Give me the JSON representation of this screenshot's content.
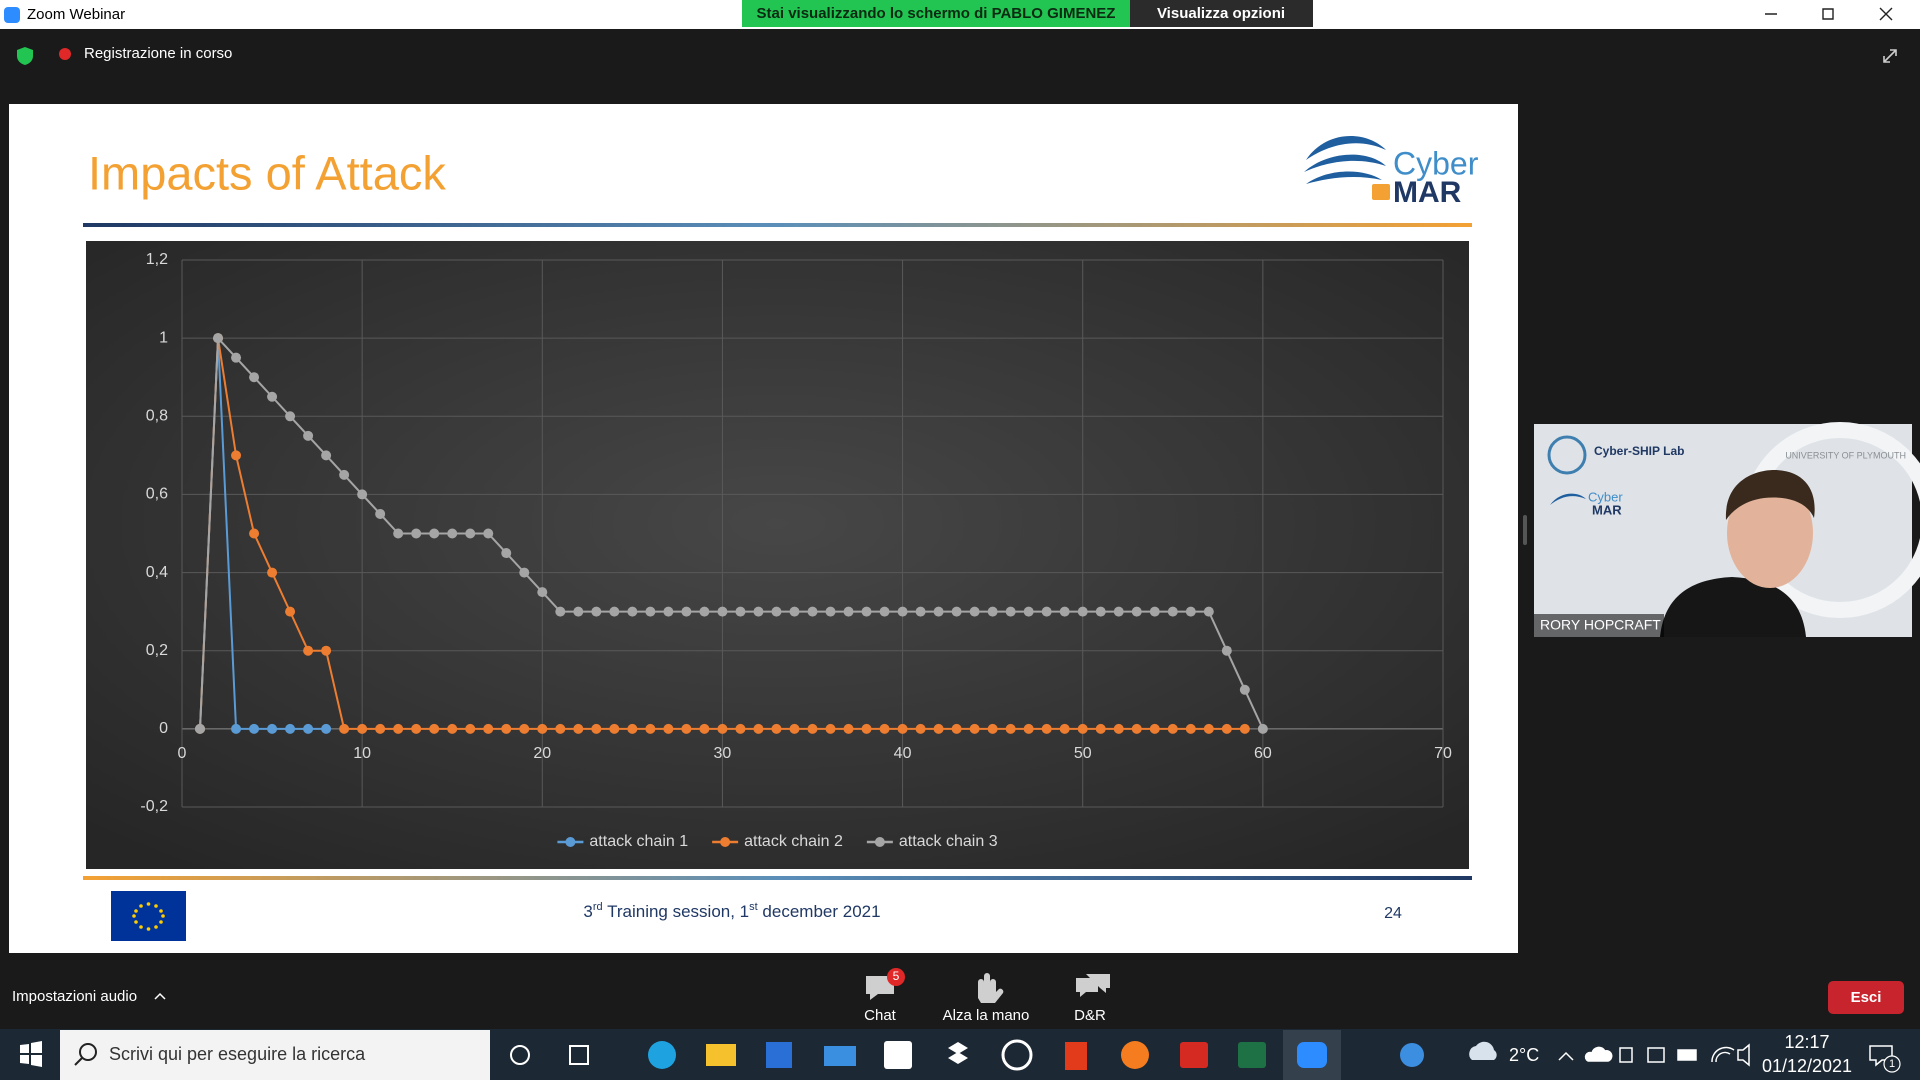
{
  "window": {
    "title": "Zoom Webinar"
  },
  "share_banner": {
    "text": "Stai visualizzando lo schermo di PABLO GIMENEZ",
    "options": "Visualizza opzioni"
  },
  "recording": "Registrazione in corso",
  "slide": {
    "title": "Impacts of Attack",
    "logo": [
      "Cyber",
      "MAR"
    ],
    "footer": [
      "3",
      "rd",
      " Training session, 1",
      "st",
      " december 2021"
    ],
    "page": 24
  },
  "chart_data": {
    "type": "line",
    "x": [
      1,
      2,
      3,
      4,
      5,
      6,
      7,
      8,
      9,
      10,
      11,
      12,
      13,
      14,
      15,
      16,
      17,
      18,
      19,
      20,
      21,
      22,
      23,
      24,
      25,
      26,
      27,
      28,
      29,
      30,
      31,
      32,
      33,
      34,
      35,
      36,
      37,
      38,
      39,
      40,
      41,
      42,
      43,
      44,
      45,
      46,
      47,
      48,
      49,
      50,
      51,
      52,
      53,
      54,
      55,
      56,
      57,
      58,
      59,
      60
    ],
    "series": [
      {
        "name": "attack chain 1",
        "color": "#5b9bd5",
        "values": [
          0,
          1,
          0,
          0,
          0,
          0,
          0,
          0,
          null,
          null,
          null,
          null,
          null,
          null,
          null,
          null,
          null,
          null,
          null,
          null,
          null,
          null,
          null,
          null,
          null,
          null,
          null,
          null,
          null,
          null,
          null,
          null,
          null,
          null,
          null,
          null,
          null,
          null,
          null,
          null,
          null,
          null,
          null,
          null,
          null,
          null,
          null,
          null,
          null,
          null,
          null,
          null,
          null,
          null,
          null,
          null,
          null,
          null,
          null,
          null
        ]
      },
      {
        "name": "attack chain 2",
        "color": "#ed7d31",
        "values": [
          0,
          1,
          0.7,
          0.5,
          0.4,
          0.3,
          0.2,
          0.2,
          0,
          0,
          0,
          0,
          0,
          0,
          0,
          0,
          0,
          0,
          0,
          0,
          0,
          0,
          0,
          0,
          0,
          0,
          0,
          0,
          0,
          0,
          0,
          0,
          0,
          0,
          0,
          0,
          0,
          0,
          0,
          0,
          0,
          0,
          0,
          0,
          0,
          0,
          0,
          0,
          0,
          0,
          0,
          0,
          0,
          0,
          0,
          0,
          0,
          0,
          0,
          null
        ]
      },
      {
        "name": "attack chain 3",
        "color": "#a5a5a5",
        "values": [
          0,
          1,
          0.95,
          0.9,
          0.85,
          0.8,
          0.75,
          0.7,
          0.65,
          0.6,
          0.55,
          0.5,
          0.5,
          0.5,
          0.5,
          0.5,
          0.5,
          0.45,
          0.4,
          0.35,
          0.3,
          0.3,
          0.3,
          0.3,
          0.3,
          0.3,
          0.3,
          0.3,
          0.3,
          0.3,
          0.3,
          0.3,
          0.3,
          0.3,
          0.3,
          0.3,
          0.3,
          0.3,
          0.3,
          0.3,
          0.3,
          0.3,
          0.3,
          0.3,
          0.3,
          0.3,
          0.3,
          0.3,
          0.3,
          0.3,
          0.3,
          0.3,
          0.3,
          0.3,
          0.3,
          0.3,
          0.3,
          0.2,
          0.1,
          0
        ]
      }
    ],
    "xlim": [
      0,
      70
    ],
    "xticks": [
      0,
      10,
      20,
      30,
      40,
      50,
      60,
      70
    ],
    "ylim": [
      -0.2,
      1.2
    ],
    "yticks": [
      {
        "value": -0.2,
        "label": "-0,2"
      },
      0,
      {
        "value": 0.2,
        "label": "0,2"
      },
      {
        "value": 0.4,
        "label": "0,4"
      },
      {
        "value": 0.6,
        "label": "0,6"
      },
      {
        "value": 0.8,
        "label": "0,8"
      },
      1,
      {
        "value": 1.2,
        "label": "1,2"
      }
    ],
    "grid": true,
    "legend": "bottom"
  },
  "video": {
    "lab": "Cyber-SHIP Lab",
    "university": "UNIVERSITY OF PLYMOUTH",
    "logo": [
      "Cyber",
      "MAR"
    ],
    "name": "RORY HOPCRAFT"
  },
  "toolbar": {
    "audio": "Impostazioni audio",
    "chat": "Chat",
    "chat_badge": 5,
    "hand": "Alza la mano",
    "qa": "D&R",
    "leave": "Esci"
  },
  "taskbar": {
    "search": "Scrivi qui per eseguire la ricerca",
    "weather": "2°C",
    "time": "12:17",
    "date": "01/12/2021",
    "notifications": 1
  }
}
